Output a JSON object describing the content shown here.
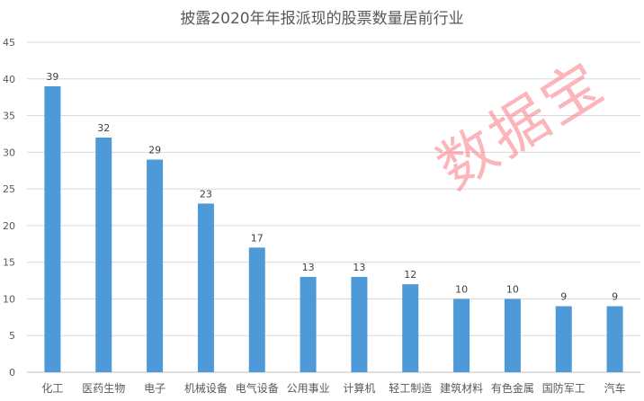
{
  "chart_data": {
    "type": "bar",
    "title": "披露2020年年报派现的股票数量居前行业",
    "categories": [
      "化工",
      "医药生物",
      "电子",
      "机械设备",
      "电气设备",
      "公用事业",
      "计算机",
      "轻工制造",
      "建筑材料",
      "有色金属",
      "国防军工",
      "汽车"
    ],
    "values": [
      39,
      32,
      29,
      23,
      17,
      13,
      13,
      12,
      10,
      10,
      9,
      9
    ],
    "xlabel": "",
    "ylabel": "",
    "ylim": [
      0,
      45
    ],
    "yticks": [
      0,
      5,
      10,
      15,
      20,
      25,
      30,
      35,
      40,
      45
    ],
    "grid": true,
    "bar_color": "#4e9ad8",
    "data_labels": true
  },
  "watermark": "数据宝"
}
